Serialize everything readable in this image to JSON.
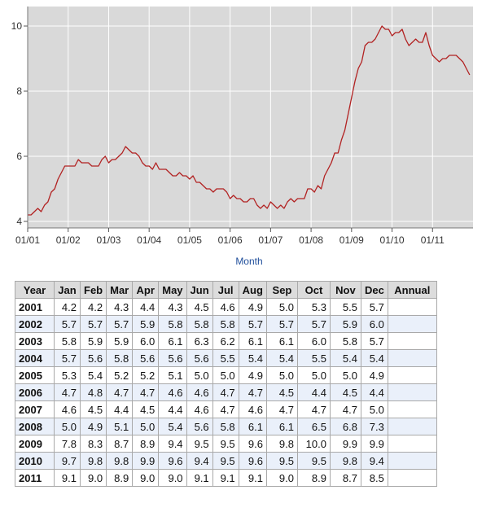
{
  "chart_data": {
    "type": "line",
    "title": "",
    "xlabel": "Month",
    "ylabel": "",
    "ylim": [
      3.8,
      10.6
    ],
    "yticks": [
      "4",
      "6",
      "8",
      "10"
    ],
    "xticks": [
      "01/01",
      "01/02",
      "01/03",
      "01/04",
      "01/05",
      "01/06",
      "01/07",
      "01/08",
      "01/09",
      "01/10",
      "01/11"
    ],
    "grid": true,
    "start": "2001-01",
    "series": [
      {
        "color": "#b22222",
        "values": [
          4.2,
          4.2,
          4.3,
          4.4,
          4.3,
          4.5,
          4.6,
          4.9,
          5.0,
          5.3,
          5.5,
          5.7,
          5.7,
          5.7,
          5.7,
          5.9,
          5.8,
          5.8,
          5.8,
          5.7,
          5.7,
          5.7,
          5.9,
          6.0,
          5.8,
          5.9,
          5.9,
          6.0,
          6.1,
          6.3,
          6.2,
          6.1,
          6.1,
          6.0,
          5.8,
          5.7,
          5.7,
          5.6,
          5.8,
          5.6,
          5.6,
          5.6,
          5.5,
          5.4,
          5.4,
          5.5,
          5.4,
          5.4,
          5.3,
          5.4,
          5.2,
          5.2,
          5.1,
          5.0,
          5.0,
          4.9,
          5.0,
          5.0,
          5.0,
          4.9,
          4.7,
          4.8,
          4.7,
          4.7,
          4.6,
          4.6,
          4.7,
          4.7,
          4.5,
          4.4,
          4.5,
          4.4,
          4.6,
          4.5,
          4.4,
          4.5,
          4.4,
          4.6,
          4.7,
          4.6,
          4.7,
          4.7,
          4.7,
          5.0,
          5.0,
          4.9,
          5.1,
          5.0,
          5.4,
          5.6,
          5.8,
          6.1,
          6.1,
          6.5,
          6.8,
          7.3,
          7.8,
          8.3,
          8.7,
          8.9,
          9.4,
          9.5,
          9.5,
          9.6,
          9.8,
          10.0,
          9.9,
          9.9,
          9.7,
          9.8,
          9.8,
          9.9,
          9.6,
          9.4,
          9.5,
          9.6,
          9.5,
          9.5,
          9.8,
          9.4,
          9.1,
          9.0,
          8.9,
          9.0,
          9.0,
          9.1,
          9.1,
          9.1,
          9.0,
          8.9,
          8.7,
          8.5
        ]
      }
    ]
  },
  "table": {
    "headers": [
      "Year",
      "Jan",
      "Feb",
      "Mar",
      "Apr",
      "May",
      "Jun",
      "Jul",
      "Aug",
      "Sep",
      "Oct",
      "Nov",
      "Dec",
      "Annual"
    ],
    "rows": [
      {
        "year": "2001",
        "values": [
          "4.2",
          "4.2",
          "4.3",
          "4.4",
          "4.3",
          "4.5",
          "4.6",
          "4.9",
          "5.0",
          "5.3",
          "5.5",
          "5.7"
        ],
        "annual": ""
      },
      {
        "year": "2002",
        "values": [
          "5.7",
          "5.7",
          "5.7",
          "5.9",
          "5.8",
          "5.8",
          "5.8",
          "5.7",
          "5.7",
          "5.7",
          "5.9",
          "6.0"
        ],
        "annual": ""
      },
      {
        "year": "2003",
        "values": [
          "5.8",
          "5.9",
          "5.9",
          "6.0",
          "6.1",
          "6.3",
          "6.2",
          "6.1",
          "6.1",
          "6.0",
          "5.8",
          "5.7"
        ],
        "annual": ""
      },
      {
        "year": "2004",
        "values": [
          "5.7",
          "5.6",
          "5.8",
          "5.6",
          "5.6",
          "5.6",
          "5.5",
          "5.4",
          "5.4",
          "5.5",
          "5.4",
          "5.4"
        ],
        "annual": ""
      },
      {
        "year": "2005",
        "values": [
          "5.3",
          "5.4",
          "5.2",
          "5.2",
          "5.1",
          "5.0",
          "5.0",
          "4.9",
          "5.0",
          "5.0",
          "5.0",
          "4.9"
        ],
        "annual": ""
      },
      {
        "year": "2006",
        "values": [
          "4.7",
          "4.8",
          "4.7",
          "4.7",
          "4.6",
          "4.6",
          "4.7",
          "4.7",
          "4.5",
          "4.4",
          "4.5",
          "4.4"
        ],
        "annual": ""
      },
      {
        "year": "2007",
        "values": [
          "4.6",
          "4.5",
          "4.4",
          "4.5",
          "4.4",
          "4.6",
          "4.7",
          "4.6",
          "4.7",
          "4.7",
          "4.7",
          "5.0"
        ],
        "annual": ""
      },
      {
        "year": "2008",
        "values": [
          "5.0",
          "4.9",
          "5.1",
          "5.0",
          "5.4",
          "5.6",
          "5.8",
          "6.1",
          "6.1",
          "6.5",
          "6.8",
          "7.3"
        ],
        "annual": ""
      },
      {
        "year": "2009",
        "values": [
          "7.8",
          "8.3",
          "8.7",
          "8.9",
          "9.4",
          "9.5",
          "9.5",
          "9.6",
          "9.8",
          "10.0",
          "9.9",
          "9.9"
        ],
        "annual": ""
      },
      {
        "year": "2010",
        "values": [
          "9.7",
          "9.8",
          "9.8",
          "9.9",
          "9.6",
          "9.4",
          "9.5",
          "9.6",
          "9.5",
          "9.5",
          "9.8",
          "9.4"
        ],
        "annual": ""
      },
      {
        "year": "2011",
        "values": [
          "9.1",
          "9.0",
          "8.9",
          "9.0",
          "9.0",
          "9.1",
          "9.1",
          "9.1",
          "9.0",
          "8.9",
          "8.7",
          "8.5"
        ],
        "annual": ""
      }
    ]
  }
}
